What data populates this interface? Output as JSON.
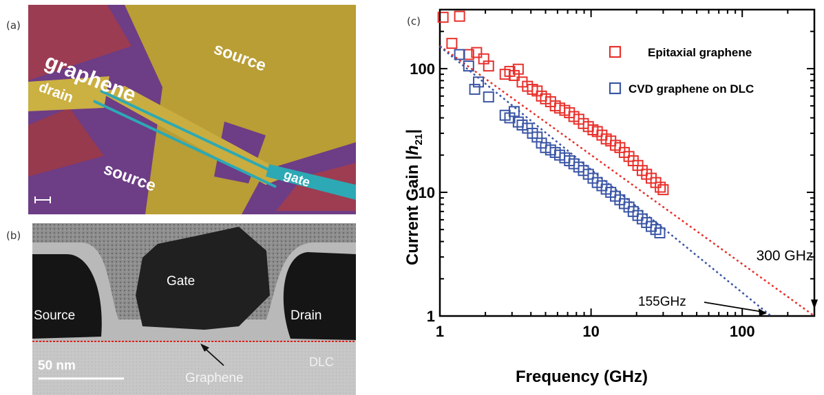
{
  "panels": {
    "a": "(a)",
    "b": "(b)",
    "c": "(c)"
  },
  "sem": {
    "graphene": "graphene",
    "source_top": "source",
    "drain": "drain",
    "source_bottom": "source",
    "gate": "gate"
  },
  "tem": {
    "gate": "Gate",
    "source": "Source",
    "drain": "Drain",
    "scale": "50 nm",
    "dlc": "DLC",
    "graphene": "Graphene"
  },
  "chart_data": {
    "type": "scatter",
    "xlabel": "Frequency (GHz)",
    "ylabel_main": "Current Gain |",
    "ylabel_italic": "h",
    "ylabel_sub": "21",
    "ylabel_end": "|",
    "xscale": "log",
    "yscale": "log",
    "xlim": [
      1,
      300
    ],
    "ylim": [
      1,
      300
    ],
    "xticks": [
      1,
      10,
      100
    ],
    "xtick_labels": [
      "1",
      "10",
      "100"
    ],
    "yticks": [
      1,
      10,
      100
    ],
    "ytick_labels": [
      "1",
      "10",
      "100"
    ],
    "legend_position": "top-right",
    "series": [
      {
        "name": "Epitaxial graphene",
        "color": "#e8302b",
        "fit_end_x": 300,
        "x": [
          1.05,
          1.35,
          1.2,
          1.55,
          1.75,
          1.95,
          2.1,
          2.7,
          2.9,
          3.1,
          3.3,
          3.5,
          3.8,
          4.1,
          4.4,
          4.7,
          5.0,
          5.4,
          5.8,
          6.2,
          6.7,
          7.2,
          7.7,
          8.3,
          8.9,
          9.6,
          10.3,
          11.0,
          11.8,
          12.6,
          13.5,
          14.5,
          15.5,
          16.6,
          17.8,
          19.0,
          20.4,
          21.8,
          23.3,
          25.0,
          26.8,
          28.7,
          30.0
        ],
        "y": [
          260,
          265,
          160,
          130,
          135,
          120,
          105,
          90,
          95,
          88,
          99,
          78,
          72,
          68,
          66,
          60,
          57,
          54,
          50,
          48,
          46,
          44,
          41,
          39,
          36,
          34,
          32,
          31,
          29,
          27,
          26,
          24,
          23,
          21,
          19.5,
          18,
          16.5,
          15,
          14,
          13,
          12,
          11,
          10.5
        ]
      },
      {
        "name": "CVD graphene on DLC",
        "color": "#3a55a5",
        "fit_end_x": 155,
        "x": [
          1.35,
          1.55,
          1.7,
          1.8,
          2.1,
          2.7,
          2.9,
          3.1,
          3.3,
          3.5,
          3.8,
          4.1,
          4.4,
          4.7,
          5.0,
          5.4,
          5.8,
          6.2,
          6.7,
          7.2,
          7.7,
          8.3,
          8.9,
          9.6,
          10.3,
          11.0,
          11.8,
          12.6,
          13.5,
          14.5,
          15.5,
          16.6,
          17.8,
          19.0,
          20.4,
          21.8,
          23.3,
          25.0,
          26.8,
          28.5
        ],
        "y": [
          130,
          105,
          68,
          78,
          59,
          42,
          40,
          45,
          37,
          35,
          33,
          30,
          28,
          25,
          23,
          22,
          21,
          20,
          19,
          18,
          17,
          16,
          15,
          14,
          13,
          12,
          11.3,
          10.6,
          10,
          9.3,
          8.7,
          8.1,
          7.6,
          7.0,
          6.5,
          6.1,
          5.7,
          5.3,
          5.0,
          4.7
        ]
      }
    ],
    "annotations": [
      {
        "text": "300 GHz",
        "x": 300
      },
      {
        "text": "155GHz",
        "x": 155
      }
    ]
  }
}
